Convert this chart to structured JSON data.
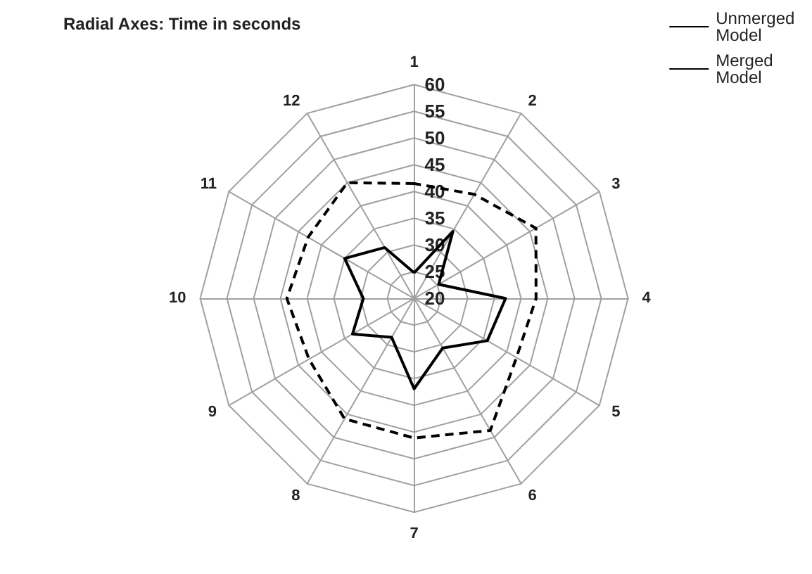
{
  "chart_data": {
    "type": "radar",
    "title": "Radial Axes: Time in seconds",
    "categories": [
      "1",
      "2",
      "3",
      "4",
      "5",
      "6",
      "7",
      "8",
      "9",
      "10",
      "11",
      "12"
    ],
    "series": [
      {
        "name": "Unmerged Model",
        "color": "#000000",
        "line_style": "dashed",
        "values": [
          41.5,
          42.5,
          46.3,
          42.8,
          42.1,
          48.5,
          46.1,
          46,
          42.7,
          43.8,
          42.9,
          45
        ]
      },
      {
        "name": "Merged Model",
        "color": "#000000",
        "line_style": "solid",
        "values": [
          24.8,
          34.5,
          25.3,
          37.1,
          35.8,
          30.7,
          36.9,
          28.4,
          33.3,
          29.5,
          35,
          31
        ]
      }
    ],
    "ylim": [
      20,
      60
    ],
    "yticks": [
      20,
      25,
      30,
      35,
      40,
      45,
      50,
      55,
      60
    ],
    "grid": true,
    "legend": "top right",
    "marker": "none"
  }
}
